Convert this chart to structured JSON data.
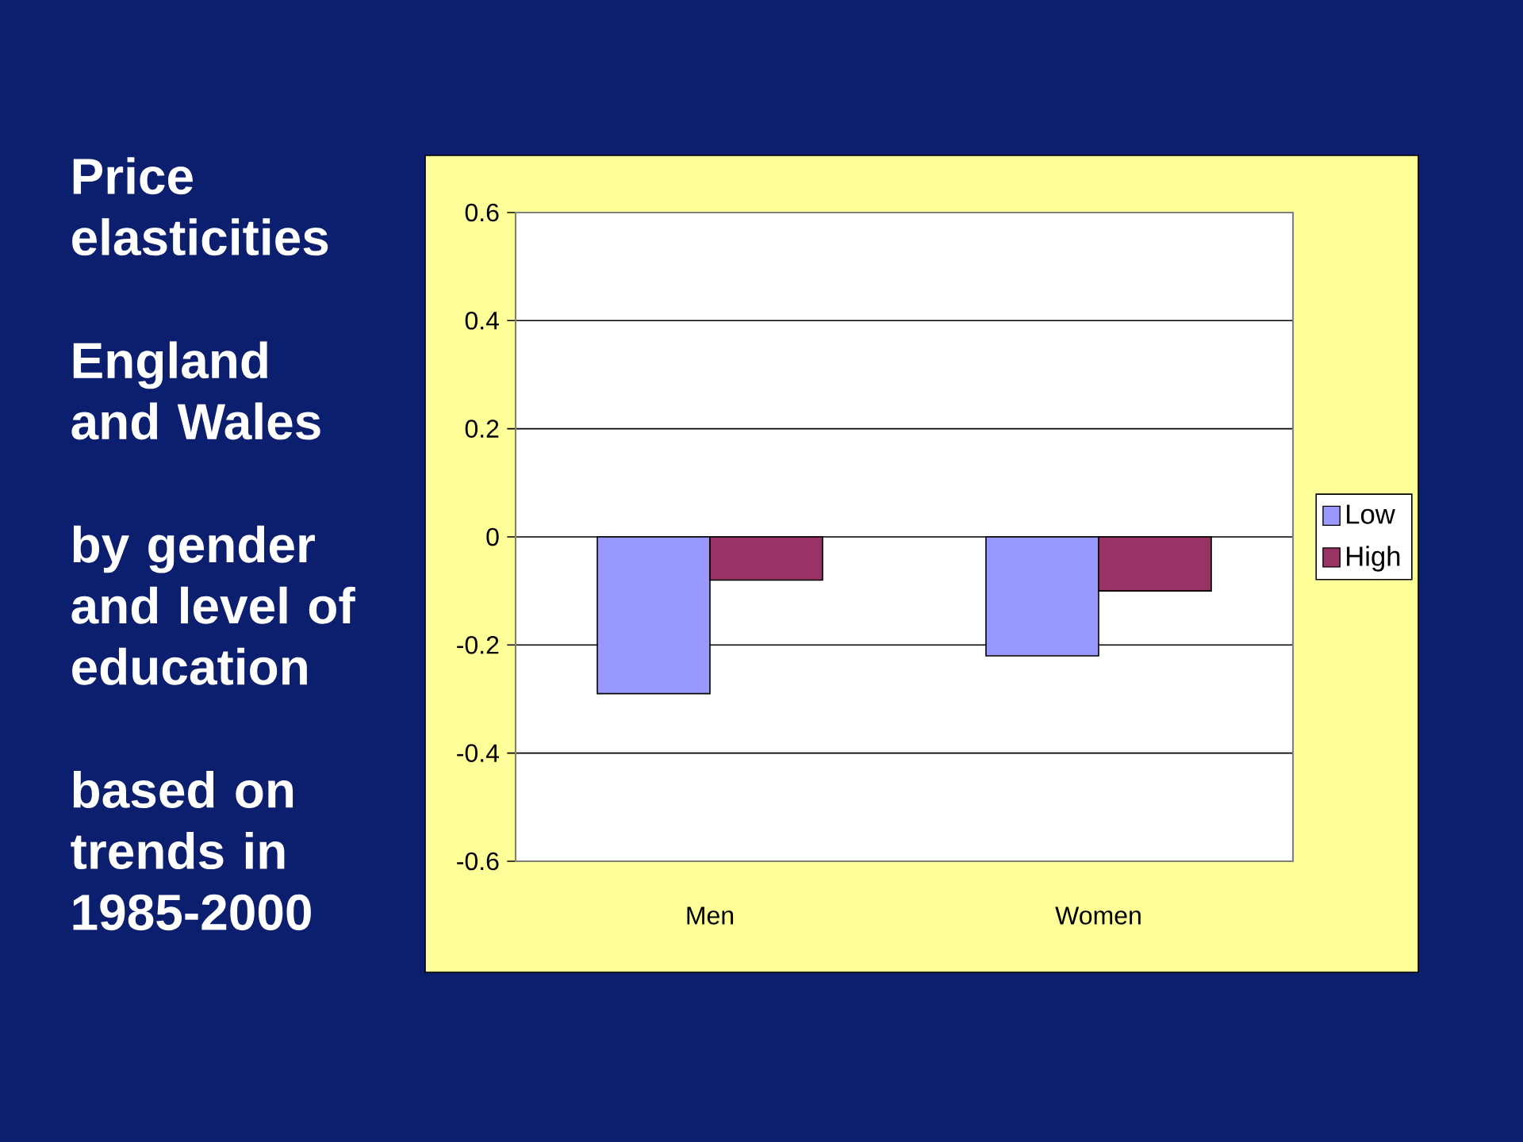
{
  "chart_data": {
    "type": "bar",
    "title": "Price elasticities",
    "subtitle": "England and Wales",
    "annotations": [
      "by gender and level of education",
      "based on trends in 1985-2000"
    ],
    "categories": [
      "Men",
      "Women"
    ],
    "series": [
      {
        "name": "Low",
        "color": "#9999ff",
        "values": [
          -0.29,
          -0.22
        ]
      },
      {
        "name": "High",
        "color": "#993366",
        "values": [
          -0.08,
          -0.1
        ]
      }
    ],
    "ylim": [
      -0.6,
      0.6
    ],
    "yticks": [
      -0.6,
      -0.4,
      -0.2,
      0,
      0.2,
      0.4,
      0.6
    ],
    "grid": "y",
    "legend": "right"
  }
}
